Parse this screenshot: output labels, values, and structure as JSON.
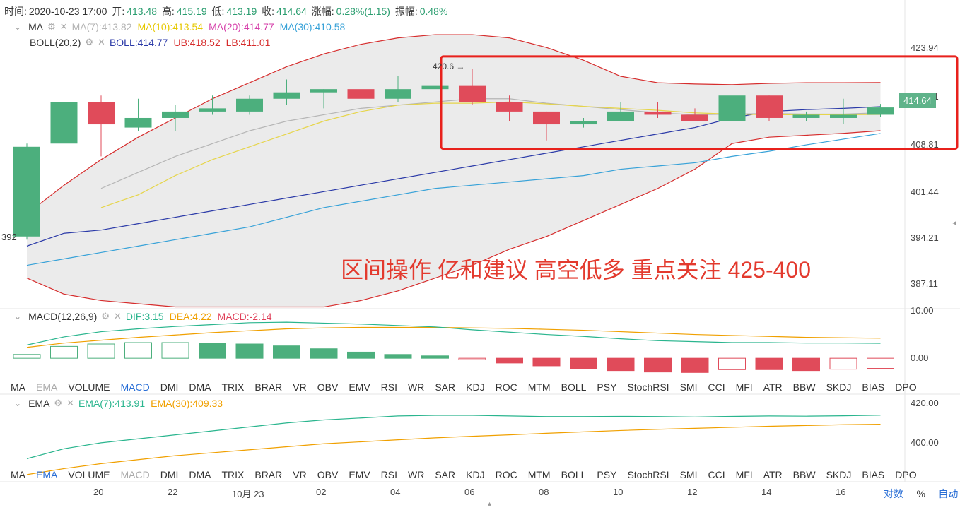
{
  "header": {
    "time_label": "时间:",
    "time_value": "2020-10-23 17:00",
    "open_label": "开:",
    "open_value": "413.48",
    "high_label": "高:",
    "high_value": "415.19",
    "low_label": "低:",
    "low_value": "413.19",
    "close_label": "收:",
    "close_value": "414.64",
    "change_label": "涨幅:",
    "change_value": "0.28%(1.15)",
    "amp_label": "振幅:",
    "amp_value": "0.48%"
  },
  "ma_legend": {
    "name": "MA",
    "items": [
      {
        "text": "MA(7):413.82",
        "color": "#b5b5b5"
      },
      {
        "text": "MA(10):413.54",
        "color": "#e6c800"
      },
      {
        "text": "MA(20):414.77",
        "color": "#d63faa"
      },
      {
        "text": "MA(30):410.58",
        "color": "#38a2d8"
      }
    ]
  },
  "boll_legend": {
    "name": "BOLL(20,2)",
    "items": [
      {
        "text": "BOLL:414.77",
        "color": "#2b3aa8"
      },
      {
        "text": "UB:418.52",
        "color": "#d62d2d"
      },
      {
        "text": "LB:411.01",
        "color": "#d62d2d"
      }
    ]
  },
  "macd_legend": {
    "name": "MACD(12,26,9)",
    "items": [
      {
        "text": "DIF:3.15",
        "color": "#2ab58e"
      },
      {
        "text": "DEA:4.22",
        "color": "#f0a000"
      },
      {
        "text": "MACD:-2.14",
        "color": "#e0405a"
      }
    ]
  },
  "ema_legend": {
    "name": "EMA",
    "items": [
      {
        "text": "EMA(7):413.91",
        "color": "#2ab58e"
      },
      {
        "text": "EMA(30):409.33",
        "color": "#f0a000"
      }
    ]
  },
  "indicator_tabs": [
    "MA",
    "EMA",
    "VOLUME",
    "MACD",
    "DMI",
    "DMA",
    "TRIX",
    "BRAR",
    "VR",
    "OBV",
    "EMV",
    "RSI",
    "WR",
    "SAR",
    "KDJ",
    "ROC",
    "MTM",
    "BOLL",
    "PSY",
    "StochRSI",
    "SMI",
    "CCI",
    "MFI",
    "ATR",
    "BBW",
    "SKDJ",
    "BIAS",
    "DPO"
  ],
  "tabs_row1_active": "MACD",
  "tabs_row1_muted": "EMA",
  "tabs_row2_active": "EMA",
  "tabs_row2_muted": "MACD",
  "price_axis": [
    "423.94",
    "416.31",
    "408.81",
    "401.44",
    "394.21",
    "387.11"
  ],
  "last_price": "414.64",
  "macd_axis": [
    "10.00",
    "0.00"
  ],
  "ema_axis": [
    "420.00",
    "400.00"
  ],
  "x_axis": [
    "20",
    "22",
    "10月 23",
    "02",
    "04",
    "06",
    "08",
    "10",
    "12",
    "14",
    "16"
  ],
  "bottom_controls": {
    "log": "对数",
    "pct": "%",
    "auto": "自动"
  },
  "annotation": "区间操作 亿和建议 高空低多 重点关注 425-400",
  "high_marker": "420.6 →",
  "low_marker": "392",
  "colors": {
    "up": "#4caf7d",
    "down": "#e04b5a",
    "box": "#e8211c",
    "band_fill": "#e6e6e6"
  },
  "chart_data": {
    "type": "candlestick",
    "categories": [
      "c1",
      "c2",
      "c3",
      "c4",
      "c5",
      "c6",
      "c7",
      "c8",
      "c9",
      "c10",
      "c11",
      "c12",
      "c13",
      "c14",
      "c15",
      "c16",
      "c17",
      "c18",
      "c19",
      "c20",
      "c21",
      "c22",
      "c23",
      "c24"
    ],
    "ohlc": [
      [
        394.5,
        408.5,
        394.0,
        409.0
      ],
      [
        409.0,
        415.5,
        406.5,
        416.0
      ],
      [
        415.5,
        412.0,
        407.0,
        416.5
      ],
      [
        411.5,
        413.0,
        411.0,
        416.0
      ],
      [
        413.0,
        414.0,
        411.0,
        415.0
      ],
      [
        414.0,
        414.5,
        413.5,
        416.5
      ],
      [
        414.0,
        416.0,
        413.5,
        416.5
      ],
      [
        416.0,
        417.0,
        415.0,
        419.0
      ],
      [
        417.0,
        417.5,
        414.5,
        417.5
      ],
      [
        417.5,
        416.0,
        416.0,
        419.5
      ],
      [
        416.0,
        417.5,
        415.5,
        419.5
      ],
      [
        417.5,
        418.0,
        412.0,
        418.0
      ],
      [
        418.0,
        415.5,
        415.0,
        420.6
      ],
      [
        415.5,
        414.0,
        412.5,
        416.5
      ],
      [
        414.0,
        412.0,
        409.5,
        414.0
      ],
      [
        412.0,
        412.5,
        411.5,
        413.0
      ],
      [
        412.5,
        414.0,
        412.5,
        415.5
      ],
      [
        414.0,
        413.5,
        413.0,
        415.5
      ],
      [
        413.5,
        412.5,
        412.5,
        414.5
      ],
      [
        412.5,
        416.5,
        412.5,
        416.5
      ],
      [
        416.5,
        413.0,
        412.5,
        416.5
      ],
      [
        413.0,
        413.5,
        412.5,
        414.0
      ],
      [
        413.0,
        413.5,
        412.0,
        416.0
      ],
      [
        413.5,
        414.64,
        413.19,
        415.19
      ]
    ],
    "ub": [
      398.0,
      402.5,
      406.5,
      410.0,
      413.0,
      416.0,
      418.5,
      421.0,
      423.0,
      424.5,
      425.5,
      426.0,
      426.0,
      425.5,
      424.0,
      422.0,
      419.5,
      418.5,
      418.3,
      418.2,
      418.4,
      418.5,
      418.5,
      418.52
    ],
    "lb": [
      388.0,
      385.5,
      384.5,
      384.0,
      383.5,
      383.5,
      383.5,
      383.5,
      383.5,
      384.5,
      386.0,
      388.0,
      390.0,
      392.5,
      394.5,
      397.0,
      399.5,
      402.0,
      405.0,
      409.0,
      410.0,
      410.3,
      410.6,
      411.01
    ],
    "boll_mid": [
      393.0,
      395.0,
      395.5,
      396.5,
      397.5,
      398.5,
      399.5,
      400.5,
      401.5,
      402.5,
      403.5,
      404.5,
      405.5,
      406.5,
      407.5,
      408.5,
      409.5,
      410.5,
      411.5,
      413.0,
      414.0,
      414.3,
      414.5,
      414.77
    ],
    "ma7": [
      null,
      null,
      402.0,
      404.5,
      407.0,
      409.0,
      411.0,
      412.5,
      413.5,
      414.5,
      415.0,
      415.5,
      416.0,
      416.0,
      415.3,
      414.8,
      414.3,
      413.8,
      413.5,
      413.6,
      413.7,
      413.6,
      413.6,
      413.82
    ],
    "ma10": [
      null,
      null,
      399.0,
      401.0,
      404.0,
      406.5,
      408.5,
      410.5,
      412.5,
      414.0,
      415.0,
      415.3,
      415.3,
      415.5,
      415.2,
      414.8,
      414.5,
      414.2,
      413.8,
      413.6,
      413.5,
      413.5,
      413.5,
      413.54
    ],
    "ma30": [
      390.0,
      391.0,
      392.0,
      393.0,
      394.0,
      395.0,
      396.0,
      397.5,
      399.0,
      400.0,
      401.0,
      402.0,
      402.5,
      403.0,
      403.5,
      404.0,
      405.0,
      405.5,
      406.0,
      407.0,
      407.8,
      408.8,
      409.7,
      410.58
    ],
    "macd_dif": [
      2.8,
      4.5,
      5.6,
      6.2,
      6.7,
      7.1,
      7.5,
      7.6,
      7.4,
      7.2,
      6.9,
      6.6,
      6.0,
      5.5,
      5.0,
      4.6,
      4.1,
      3.7,
      3.5,
      3.3,
      3.3,
      3.2,
      3.2,
      3.15
    ],
    "macd_dea": [
      2.3,
      3.2,
      3.8,
      4.4,
      4.9,
      5.4,
      5.8,
      6.2,
      6.4,
      6.5,
      6.5,
      6.5,
      6.4,
      6.3,
      6.1,
      5.9,
      5.6,
      5.3,
      5.0,
      4.8,
      4.6,
      4.4,
      4.3,
      4.22
    ],
    "macd_hist": [
      0.8,
      2.5,
      3.0,
      3.3,
      3.3,
      3.2,
      3.0,
      2.6,
      2.0,
      1.3,
      0.8,
      0.5,
      -0.3,
      -1.0,
      -1.6,
      -2.2,
      -2.6,
      -2.9,
      -3.0,
      -2.4,
      -2.4,
      -2.6,
      -2.3,
      -2.14
    ],
    "ema7": [
      392.0,
      397.0,
      400.0,
      402.0,
      404.0,
      406.0,
      408.0,
      410.0,
      411.5,
      412.5,
      413.5,
      413.8,
      413.8,
      413.5,
      413.2,
      413.2,
      413.3,
      413.2,
      413.0,
      413.3,
      413.5,
      413.4,
      413.6,
      413.91
    ],
    "ema30": [
      384.0,
      387.0,
      389.5,
      391.5,
      393.5,
      395.0,
      396.5,
      398.0,
      399.5,
      400.5,
      401.5,
      402.5,
      403.3,
      404.0,
      404.8,
      405.5,
      406.2,
      406.8,
      407.3,
      407.8,
      408.3,
      408.7,
      409.1,
      409.33
    ],
    "price_ylim": [
      384.0,
      427.0
    ],
    "macd_ylim": [
      -3.4,
      10.0
    ],
    "ema_ylim": [
      390.0,
      422.0
    ]
  }
}
